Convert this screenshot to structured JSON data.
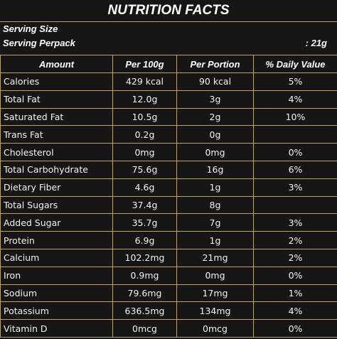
{
  "title": "NUTRITION FACTS",
  "serving": {
    "size_label": "Serving Size",
    "perpack_label": "Serving Perpack",
    "perpack_value": ": 21g"
  },
  "table": {
    "headers": [
      "Amount",
      "Per 100g",
      "Per Portion",
      "% Daily Value"
    ],
    "rows": [
      {
        "name": "Calories",
        "per100": "429 kcal",
        "portion": "90 kcal",
        "dv": "5%"
      },
      {
        "name": "Total Fat",
        "per100": "12.0g",
        "portion": "3g",
        "dv": "4%"
      },
      {
        "name": "Saturated Fat",
        "per100": "10.5g",
        "portion": "2g",
        "dv": "10%"
      },
      {
        "name": "Trans Fat",
        "per100": "0.2g",
        "portion": "0g",
        "dv": ""
      },
      {
        "name": "Cholesterol",
        "per100": "0mg",
        "portion": "0mg",
        "dv": "0%"
      },
      {
        "name": "Total Carbohydrate",
        "per100": "75.6g",
        "portion": "16g",
        "dv": "6%"
      },
      {
        "name": "Dietary Fiber",
        "per100": "4.6g",
        "portion": "1g",
        "dv": "3%"
      },
      {
        "name": "Total Sugars",
        "per100": "37.4g",
        "portion": "8g",
        "dv": ""
      },
      {
        "name": "Added Sugar",
        "per100": "35.7g",
        "portion": "7g",
        "dv": "3%"
      },
      {
        "name": "Protein",
        "per100": "6.9g",
        "portion": "1g",
        "dv": "2%"
      },
      {
        "name": "Calcium",
        "per100": "102.2mg",
        "portion": "21mg",
        "dv": "2%"
      },
      {
        "name": "Iron",
        "per100": "0.9mg",
        "portion": "0mg",
        "dv": "0%"
      },
      {
        "name": "Sodium",
        "per100": "79.6mg",
        "portion": "17mg",
        "dv": "1%"
      },
      {
        "name": "Potassium",
        "per100": "636.5mg",
        "portion": "134mg",
        "dv": "4%"
      },
      {
        "name": "Vitamin D",
        "per100": "0mcg",
        "portion": "0mcg",
        "dv": "0%"
      }
    ]
  }
}
